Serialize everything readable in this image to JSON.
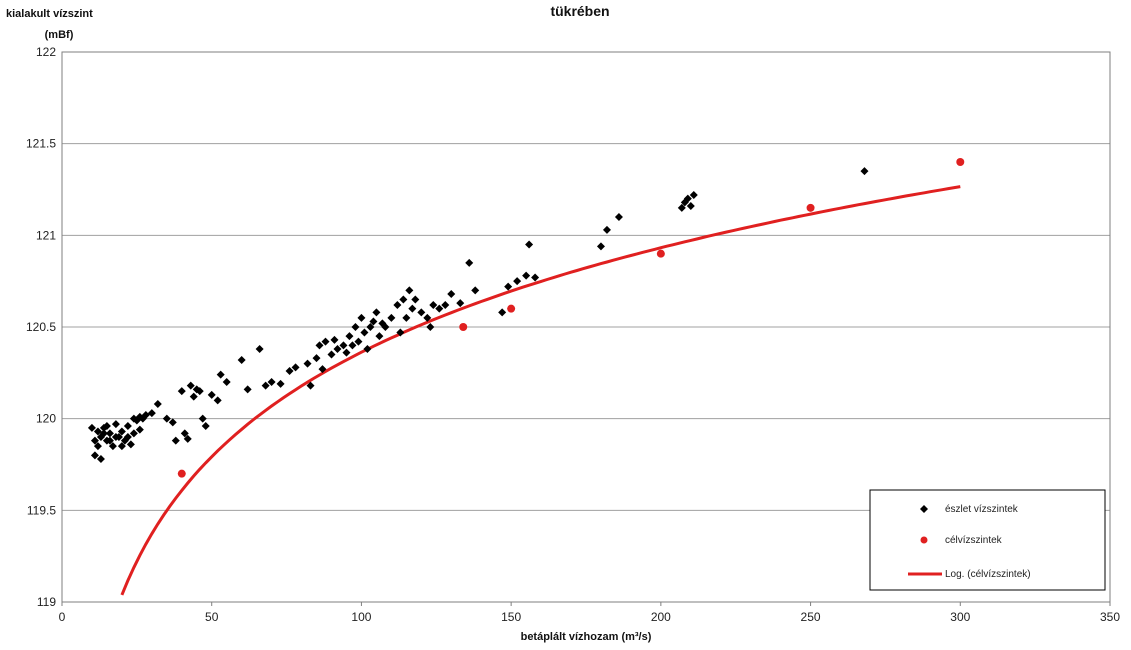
{
  "chart_data": {
    "type": "scatter",
    "title": "tükrében",
    "ylabel_line1": "kialakult  vízszint",
    "ylabel_line2": "(mBf)",
    "xlabel": "betáplált  vízhozam (m³/s)",
    "xlim": [
      0,
      350
    ],
    "ylim": [
      119,
      122
    ],
    "x_ticks": [
      0,
      50,
      100,
      150,
      200,
      250,
      300,
      350
    ],
    "y_ticks": [
      119,
      119.5,
      120,
      120.5,
      121,
      121.5,
      122
    ],
    "grid": "horizontal",
    "legend_position": "bottom-right",
    "colors": {
      "observed": "#000000",
      "target": "#e02020",
      "trend": "#e02020",
      "grid": "#a0a0a0"
    },
    "legend": {
      "observed": "észlet vízszintek",
      "target": "célvízszintek",
      "trend": "Log. (célvízszintek)"
    },
    "series": [
      {
        "name": "észlet vízszintek",
        "kind": "points",
        "points": [
          [
            10,
            119.95
          ],
          [
            11,
            119.8
          ],
          [
            12,
            119.93
          ],
          [
            13,
            119.9
          ],
          [
            13,
            119.78
          ],
          [
            14,
            119.95
          ],
          [
            15,
            119.88
          ],
          [
            16,
            119.92
          ],
          [
            17,
            119.85
          ],
          [
            18,
            119.97
          ],
          [
            19,
            119.9
          ],
          [
            20,
            119.93
          ],
          [
            21,
            119.88
          ],
          [
            22,
            119.96
          ],
          [
            23,
            119.86
          ],
          [
            24,
            119.92
          ],
          [
            25,
            119.99
          ],
          [
            26,
            119.94
          ],
          [
            27,
            120.0
          ],
          [
            28,
            120.02
          ],
          [
            11,
            119.88
          ],
          [
            12,
            119.85
          ],
          [
            14,
            119.92
          ],
          [
            16,
            119.88
          ],
          [
            18,
            119.9
          ],
          [
            20,
            119.85
          ],
          [
            22,
            119.9
          ],
          [
            24,
            120.0
          ],
          [
            26,
            120.01
          ],
          [
            15,
            119.96
          ],
          [
            30,
            120.03
          ],
          [
            32,
            120.08
          ],
          [
            35,
            120.0
          ],
          [
            37,
            119.98
          ],
          [
            38,
            119.88
          ],
          [
            40,
            120.15
          ],
          [
            41,
            119.92
          ],
          [
            42,
            119.89
          ],
          [
            43,
            120.18
          ],
          [
            44,
            120.12
          ],
          [
            45,
            120.16
          ],
          [
            46,
            120.15
          ],
          [
            47,
            120.0
          ],
          [
            48,
            119.96
          ],
          [
            50,
            120.13
          ],
          [
            52,
            120.1
          ],
          [
            53,
            120.24
          ],
          [
            55,
            120.2
          ],
          [
            60,
            120.32
          ],
          [
            62,
            120.16
          ],
          [
            66,
            120.38
          ],
          [
            68,
            120.18
          ],
          [
            70,
            120.2
          ],
          [
            73,
            120.19
          ],
          [
            76,
            120.26
          ],
          [
            78,
            120.28
          ],
          [
            82,
            120.3
          ],
          [
            83,
            120.18
          ],
          [
            85,
            120.33
          ],
          [
            86,
            120.4
          ],
          [
            87,
            120.27
          ],
          [
            88,
            120.42
          ],
          [
            90,
            120.35
          ],
          [
            91,
            120.43
          ],
          [
            92,
            120.38
          ],
          [
            94,
            120.4
          ],
          [
            95,
            120.36
          ],
          [
            96,
            120.45
          ],
          [
            97,
            120.4
          ],
          [
            98,
            120.5
          ],
          [
            99,
            120.42
          ],
          [
            100,
            120.55
          ],
          [
            101,
            120.47
          ],
          [
            102,
            120.38
          ],
          [
            103,
            120.5
          ],
          [
            104,
            120.53
          ],
          [
            105,
            120.58
          ],
          [
            106,
            120.45
          ],
          [
            107,
            120.52
          ],
          [
            108,
            120.5
          ],
          [
            110,
            120.55
          ],
          [
            112,
            120.62
          ],
          [
            113,
            120.47
          ],
          [
            114,
            120.65
          ],
          [
            115,
            120.55
          ],
          [
            116,
            120.7
          ],
          [
            117,
            120.6
          ],
          [
            118,
            120.65
          ],
          [
            120,
            120.58
          ],
          [
            122,
            120.55
          ],
          [
            123,
            120.5
          ],
          [
            124,
            120.62
          ],
          [
            126,
            120.6
          ],
          [
            128,
            120.62
          ],
          [
            130,
            120.68
          ],
          [
            133,
            120.63
          ],
          [
            136,
            120.85
          ],
          [
            138,
            120.7
          ],
          [
            147,
            120.58
          ],
          [
            149,
            120.72
          ],
          [
            152,
            120.75
          ],
          [
            155,
            120.78
          ],
          [
            156,
            120.95
          ],
          [
            158,
            120.77
          ],
          [
            180,
            120.94
          ],
          [
            182,
            121.03
          ],
          [
            186,
            121.1
          ],
          [
            207,
            121.15
          ],
          [
            208,
            121.18
          ],
          [
            209,
            121.2
          ],
          [
            210,
            121.16
          ],
          [
            211,
            121.22
          ],
          [
            268,
            121.35
          ]
        ]
      },
      {
        "name": "célvízszintek",
        "kind": "points",
        "points": [
          [
            40,
            119.7
          ],
          [
            134,
            120.5
          ],
          [
            150,
            120.6
          ],
          [
            200,
            120.9
          ],
          [
            250,
            121.15
          ],
          [
            300,
            121.4
          ]
        ]
      },
      {
        "name": "Log. (célvízszintek)",
        "kind": "log_trend",
        "a": 0.8224,
        "b": 116.575,
        "x_range": [
          20,
          300
        ]
      }
    ]
  }
}
